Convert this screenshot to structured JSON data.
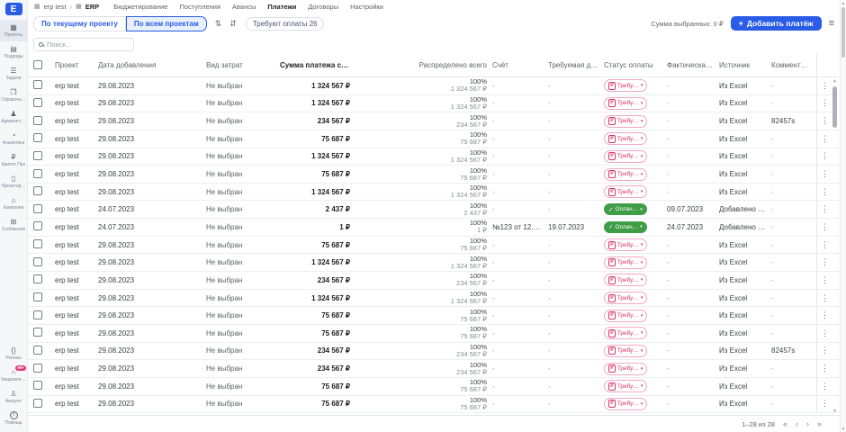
{
  "colors": {
    "accent": "#2a5ce5",
    "pending": "#d6336c",
    "paid": "#3f9d46",
    "badge": "#e5397e"
  },
  "sidebar": {
    "logo": "E",
    "items": [
      {
        "label": "Проекты",
        "icon": "projects-icon",
        "glyph": "▦",
        "active": true
      },
      {
        "label": "Подряды",
        "icon": "contracts-icon",
        "glyph": "▤"
      },
      {
        "label": "Задачи",
        "icon": "tasks-icon",
        "glyph": "☰"
      },
      {
        "label": "Справочн…",
        "icon": "directories-icon",
        "glyph": "❐"
      },
      {
        "label": "Админист…",
        "icon": "admin-icon",
        "glyph": "♟"
      },
      {
        "label": "Аналитика",
        "icon": "analytics-icon",
        "glyph": "◔"
      },
      {
        "label": "Крипто Про",
        "icon": "cryptopro-icon",
        "glyph": "₽"
      },
      {
        "label": "Проектир…",
        "icon": "documents-icon",
        "glyph": "▯"
      },
      {
        "label": "Компания",
        "icon": "company-icon",
        "glyph": "⌂"
      },
      {
        "label": "Снабжение",
        "icon": "supply-icon",
        "glyph": "⊞"
      }
    ],
    "bottom_items": [
      {
        "label": "Релизы",
        "icon": "releases-icon",
        "glyph": "{}"
      },
      {
        "label": "Уведомлен…",
        "icon": "notifications-icon",
        "glyph": "∩",
        "badge": "99+"
      },
      {
        "label": "Аккаунт",
        "icon": "account-icon",
        "glyph": "♙"
      },
      {
        "label": "Помощь",
        "icon": "help-icon",
        "glyph": "?"
      }
    ]
  },
  "topbar": {
    "breadcrumb": {
      "project": "erp test",
      "separator": "›",
      "app": "ERP"
    },
    "tabs": [
      {
        "label": "Бюджетирование"
      },
      {
        "label": "Поступления"
      },
      {
        "label": "Авансы"
      },
      {
        "label": "Платежи",
        "active": true
      },
      {
        "label": "Договоры"
      },
      {
        "label": "Настройки"
      }
    ]
  },
  "toolbar": {
    "scope": [
      {
        "label": "По текущему проекту"
      },
      {
        "label": "По всем проектам",
        "active": true
      }
    ],
    "sort_icon": "⇅",
    "collapse_icon": "⇵",
    "filter_chip": "Требуют оплаты 26",
    "selected_sum": "Сумма выбранных: 0 ₽",
    "add_button": "Добавить платёж",
    "add_plus": "+"
  },
  "search": {
    "placeholder": "Поиск..."
  },
  "table": {
    "columns": [
      {
        "key": "check",
        "label": ""
      },
      {
        "key": "project",
        "label": "Проект"
      },
      {
        "key": "date_added",
        "label": "Дата добавления"
      },
      {
        "key": "cost_type",
        "label": "Вид затрат"
      },
      {
        "key": "amount",
        "label": "Сумма платежа с НДС"
      },
      {
        "key": "distributed",
        "label": "Распределено всего"
      },
      {
        "key": "invoice",
        "label": "Счёт"
      },
      {
        "key": "due_date",
        "label": "Требуемая дата оп…"
      },
      {
        "key": "status",
        "label": "Статус оплаты"
      },
      {
        "key": "actual_date",
        "label": "Фактическая дата …"
      },
      {
        "key": "source",
        "label": "Источник"
      },
      {
        "key": "comment",
        "label": "Комментарий"
      },
      {
        "key": "kebab",
        "label": ""
      }
    ],
    "rows": [
      {
        "project": "erp test",
        "date_added": "29.08.2023",
        "cost_type": "Не выбран",
        "amount": "1 324 567 ₽",
        "distributed_pct": "100%",
        "distributed_amount": "1 324 567 ₽",
        "invoice": "-",
        "due_date": "-",
        "status_label": "Требу…",
        "status_type": "pending",
        "actual_date": "-",
        "source": "Из Excel",
        "comment": "-"
      },
      {
        "project": "erp test",
        "date_added": "29.08.2023",
        "cost_type": "Не выбран",
        "amount": "1 324 567 ₽",
        "distributed_pct": "100%",
        "distributed_amount": "1 324 567 ₽",
        "invoice": "-",
        "due_date": "-",
        "status_label": "Требу…",
        "status_type": "pending",
        "actual_date": "-",
        "source": "Из Excel",
        "comment": "-"
      },
      {
        "project": "erp test",
        "date_added": "29.08.2023",
        "cost_type": "Не выбран",
        "amount": "234 567 ₽",
        "distributed_pct": "100%",
        "distributed_amount": "234 567 ₽",
        "invoice": "-",
        "due_date": "-",
        "status_label": "Требу…",
        "status_type": "pending",
        "actual_date": "-",
        "source": "Из Excel",
        "comment": "82457s"
      },
      {
        "project": "erp test",
        "date_added": "29.08.2023",
        "cost_type": "Не выбран",
        "amount": "75 687 ₽",
        "distributed_pct": "100%",
        "distributed_amount": "75 687 ₽",
        "invoice": "-",
        "due_date": "-",
        "status_label": "Требу…",
        "status_type": "pending",
        "actual_date": "-",
        "source": "Из Excel",
        "comment": "-"
      },
      {
        "project": "erp test",
        "date_added": "29.08.2023",
        "cost_type": "Не выбран",
        "amount": "1 324 567 ₽",
        "distributed_pct": "100%",
        "distributed_amount": "1 324 567 ₽",
        "invoice": "-",
        "due_date": "-",
        "status_label": "Требу…",
        "status_type": "pending",
        "actual_date": "-",
        "source": "Из Excel",
        "comment": "-"
      },
      {
        "project": "erp test",
        "date_added": "29.08.2023",
        "cost_type": "Не выбран",
        "amount": "75 687 ₽",
        "distributed_pct": "100%",
        "distributed_amount": "75 687 ₽",
        "invoice": "-",
        "due_date": "-",
        "status_label": "Требу…",
        "status_type": "pending",
        "actual_date": "-",
        "source": "Из Excel",
        "comment": "-"
      },
      {
        "project": "erp test",
        "date_added": "29.08.2023",
        "cost_type": "Не выбран",
        "amount": "1 324 567 ₽",
        "distributed_pct": "100%",
        "distributed_amount": "1 324 567 ₽",
        "invoice": "-",
        "due_date": "-",
        "status_label": "Требу…",
        "status_type": "pending",
        "actual_date": "-",
        "source": "Из Excel",
        "comment": "-"
      },
      {
        "project": "erp test",
        "date_added": "24.07.2023",
        "cost_type": "Не выбран",
        "amount": "2 437 ₽",
        "distributed_pct": "100%",
        "distributed_amount": "2 437 ₽",
        "invoice": "-",
        "due_date": "-",
        "status_label": "Оплач…",
        "status_type": "paid",
        "actual_date": "09.07.2023",
        "source": "Добавлено вручн…",
        "comment": "-"
      },
      {
        "project": "erp test",
        "date_added": "24.07.2023",
        "cost_type": "Не выбран",
        "amount": "1 ₽",
        "distributed_pct": "100%",
        "distributed_amount": "1 ₽",
        "invoice": "№123 от 12.07.20…",
        "due_date": "19.07.2023",
        "status_label": "Оплач…",
        "status_type": "paid",
        "actual_date": "24.07.2023",
        "source": "Добавлено вручн…",
        "comment": "-"
      },
      {
        "project": "erp test",
        "date_added": "29.08.2023",
        "cost_type": "Не выбран",
        "amount": "75 687 ₽",
        "distributed_pct": "100%",
        "distributed_amount": "75 687 ₽",
        "invoice": "-",
        "due_date": "-",
        "status_label": "Требу…",
        "status_type": "pending",
        "actual_date": "-",
        "source": "Из Excel",
        "comment": "-"
      },
      {
        "project": "erp test",
        "date_added": "29.08.2023",
        "cost_type": "Не выбран",
        "amount": "1 324 567 ₽",
        "distributed_pct": "100%",
        "distributed_amount": "1 324 567 ₽",
        "invoice": "-",
        "due_date": "-",
        "status_label": "Требу…",
        "status_type": "pending",
        "actual_date": "-",
        "source": "Из Excel",
        "comment": "-"
      },
      {
        "project": "erp test",
        "date_added": "29.08.2023",
        "cost_type": "Не выбран",
        "amount": "234 567 ₽",
        "distributed_pct": "100%",
        "distributed_amount": "234 567 ₽",
        "invoice": "-",
        "due_date": "-",
        "status_label": "Требу…",
        "status_type": "pending",
        "actual_date": "-",
        "source": "Из Excel",
        "comment": "-"
      },
      {
        "project": "erp test",
        "date_added": "29.08.2023",
        "cost_type": "Не выбран",
        "amount": "1 324 567 ₽",
        "distributed_pct": "100%",
        "distributed_amount": "1 324 567 ₽",
        "invoice": "-",
        "due_date": "-",
        "status_label": "Требу…",
        "status_type": "pending",
        "actual_date": "-",
        "source": "Из Excel",
        "comment": "-"
      },
      {
        "project": "erp test",
        "date_added": "29.08.2023",
        "cost_type": "Не выбран",
        "amount": "75 687 ₽",
        "distributed_pct": "100%",
        "distributed_amount": "75 687 ₽",
        "invoice": "-",
        "due_date": "-",
        "status_label": "Требу…",
        "status_type": "pending",
        "actual_date": "-",
        "source": "Из Excel",
        "comment": "-"
      },
      {
        "project": "erp test",
        "date_added": "29.08.2023",
        "cost_type": "Не выбран",
        "amount": "75 687 ₽",
        "distributed_pct": "100%",
        "distributed_amount": "75 687 ₽",
        "invoice": "-",
        "due_date": "-",
        "status_label": "Требу…",
        "status_type": "pending",
        "actual_date": "-",
        "source": "Из Excel",
        "comment": "-"
      },
      {
        "project": "erp test",
        "date_added": "29.08.2023",
        "cost_type": "Не выбран",
        "amount": "234 567 ₽",
        "distributed_pct": "100%",
        "distributed_amount": "234 567 ₽",
        "invoice": "-",
        "due_date": "-",
        "status_label": "Требу…",
        "status_type": "pending",
        "actual_date": "-",
        "source": "Из Excel",
        "comment": "82457s"
      },
      {
        "project": "erp test",
        "date_added": "29.08.2023",
        "cost_type": "Не выбран",
        "amount": "234 567 ₽",
        "distributed_pct": "100%",
        "distributed_amount": "234 567 ₽",
        "invoice": "-",
        "due_date": "-",
        "status_label": "Требу…",
        "status_type": "pending",
        "actual_date": "-",
        "source": "Из Excel",
        "comment": "-"
      },
      {
        "project": "erp test",
        "date_added": "29.08.2023",
        "cost_type": "Не выбран",
        "amount": "75 687 ₽",
        "distributed_pct": "100%",
        "distributed_amount": "75 687 ₽",
        "invoice": "-",
        "due_date": "-",
        "status_label": "Требу…",
        "status_type": "pending",
        "actual_date": "-",
        "source": "Из Excel",
        "comment": "-"
      },
      {
        "project": "erp test",
        "date_added": "29.08.2023",
        "cost_type": "Не выбран",
        "amount": "75 687 ₽",
        "distributed_pct": "100%",
        "distributed_amount": "75 687 ₽",
        "invoice": "-",
        "due_date": "-",
        "status_label": "Требу…",
        "status_type": "pending",
        "actual_date": "-",
        "source": "Из Excel",
        "comment": "-"
      }
    ]
  },
  "pagination": {
    "label": "1–28 из 28"
  }
}
